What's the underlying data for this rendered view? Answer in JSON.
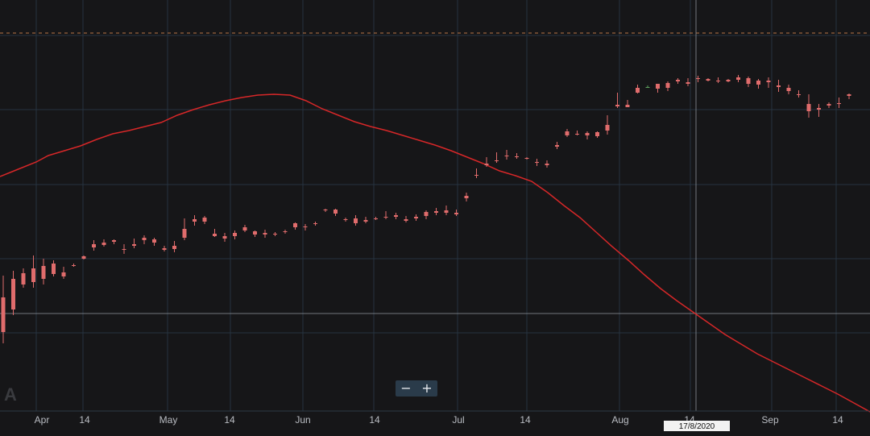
{
  "chart_data": {
    "type": "candlestick",
    "watermark": "A",
    "x_ticks": [
      "Apr",
      "14",
      "May",
      "14",
      "Jun",
      "14",
      "Jul",
      "14",
      "Aug",
      "14",
      "Sep",
      "14"
    ],
    "cursor_date": "17/8/2020",
    "zoom": {
      "minus": "−",
      "plus": "+"
    },
    "colors": {
      "up": "#5fa35e",
      "down": "#e06c6c",
      "ma": "#d62728",
      "grid": "#263340",
      "background": "#161618"
    },
    "moving_average": [
      [
        0,
        254
      ],
      [
        20,
        262
      ],
      [
        45,
        272
      ],
      [
        60,
        280
      ],
      [
        80,
        286
      ],
      [
        100,
        292
      ],
      [
        120,
        300
      ],
      [
        140,
        307
      ],
      [
        160,
        311
      ],
      [
        180,
        316
      ],
      [
        200,
        321
      ],
      [
        220,
        330
      ],
      [
        240,
        337
      ],
      [
        260,
        343
      ],
      [
        280,
        348
      ],
      [
        300,
        352
      ],
      [
        320,
        355
      ],
      [
        340,
        356
      ],
      [
        360,
        355
      ],
      [
        380,
        348
      ],
      [
        400,
        338
      ],
      [
        420,
        330
      ],
      [
        440,
        322
      ],
      [
        460,
        316
      ],
      [
        480,
        311
      ],
      [
        500,
        305
      ],
      [
        520,
        299
      ],
      [
        540,
        293
      ],
      [
        560,
        286
      ],
      [
        580,
        278
      ],
      [
        600,
        270
      ],
      [
        620,
        261
      ],
      [
        640,
        255
      ],
      [
        660,
        248
      ],
      [
        680,
        234
      ],
      [
        700,
        218
      ],
      [
        720,
        203
      ],
      [
        740,
        185
      ],
      [
        760,
        167
      ],
      [
        780,
        150
      ],
      [
        800,
        132
      ],
      [
        820,
        115
      ],
      [
        840,
        100
      ],
      [
        860,
        86
      ],
      [
        880,
        72
      ],
      [
        900,
        58
      ],
      [
        920,
        46
      ],
      [
        940,
        34
      ],
      [
        960,
        24
      ],
      [
        980,
        14
      ],
      [
        1000,
        4
      ],
      [
        1020,
        -6
      ],
      [
        1040,
        -16
      ],
      [
        1060,
        -27
      ],
      [
        1080,
        -38
      ]
    ],
    "candles": [
      [
        0,
        104,
        131,
        61,
        47
      ],
      [
        1,
        127,
        137,
        89,
        82
      ],
      [
        2,
        134,
        140,
        120,
        116
      ],
      [
        3,
        140,
        156,
        123,
        116
      ],
      [
        4,
        143,
        152,
        127,
        120
      ],
      [
        5,
        146,
        150,
        133,
        130
      ],
      [
        6,
        135,
        142,
        130,
        127
      ],
      [
        7,
        144,
        146,
        143,
        142
      ],
      [
        8,
        155,
        156,
        152,
        151
      ],
      [
        9,
        170,
        175,
        166,
        162
      ],
      [
        10,
        172,
        176,
        169,
        167
      ],
      [
        11,
        175,
        176,
        173,
        170
      ],
      [
        12,
        164,
        170,
        163,
        158
      ],
      [
        13,
        170,
        177,
        168,
        165
      ],
      [
        14,
        178,
        181,
        175,
        170
      ],
      [
        15,
        176,
        178,
        172,
        168
      ],
      [
        16,
        165,
        168,
        163,
        161
      ],
      [
        17,
        168,
        174,
        164,
        160
      ],
      [
        18,
        189,
        202,
        178,
        175
      ],
      [
        19,
        201,
        206,
        198,
        193
      ],
      [
        20,
        203,
        205,
        198,
        195
      ],
      [
        21,
        183,
        189,
        180,
        179
      ],
      [
        22,
        180,
        184,
        177,
        173
      ],
      [
        23,
        184,
        187,
        180,
        176
      ],
      [
        24,
        191,
        194,
        187,
        185
      ],
      [
        25,
        186,
        187,
        182,
        179
      ],
      [
        26,
        184,
        188,
        182,
        178
      ],
      [
        27,
        183,
        185,
        182,
        180
      ],
      [
        28,
        186,
        188,
        185,
        183
      ],
      [
        29,
        196,
        197,
        191,
        188
      ],
      [
        30,
        192,
        195,
        191,
        187
      ],
      [
        31,
        196,
        198,
        195,
        193
      ],
      [
        32,
        213,
        214,
        212,
        210
      ],
      [
        33,
        213,
        214,
        208,
        205
      ],
      [
        34,
        201,
        203,
        200,
        198
      ],
      [
        35,
        202,
        206,
        196,
        193
      ],
      [
        36,
        200,
        204,
        198,
        196
      ],
      [
        37,
        202,
        204,
        201,
        200
      ],
      [
        38,
        204,
        211,
        203,
        201
      ],
      [
        39,
        206,
        209,
        204,
        201
      ],
      [
        40,
        201,
        205,
        199,
        197
      ],
      [
        41,
        204,
        207,
        202,
        199
      ],
      [
        42,
        210,
        212,
        205,
        201
      ],
      [
        43,
        211,
        215,
        209,
        206
      ],
      [
        44,
        212,
        218,
        209,
        206
      ],
      [
        45,
        209,
        213,
        207,
        205
      ],
      [
        46,
        230,
        234,
        227,
        223
      ],
      [
        47,
        256,
        264,
        255,
        252
      ],
      [
        48,
        270,
        278,
        268,
        266
      ],
      [
        49,
        274,
        284,
        273,
        271
      ],
      [
        50,
        280,
        287,
        279,
        275
      ],
      [
        51,
        279,
        283,
        278,
        276
      ],
      [
        52,
        277,
        278,
        276,
        275
      ],
      [
        53,
        272,
        276,
        271,
        267
      ],
      [
        54,
        270,
        274,
        268,
        265
      ],
      [
        55,
        293,
        297,
        291,
        288
      ],
      [
        56,
        310,
        313,
        305,
        303
      ],
      [
        57,
        307,
        311,
        306,
        305
      ],
      [
        58,
        308,
        310,
        305,
        300
      ],
      [
        59,
        309,
        310,
        304,
        302
      ],
      [
        60,
        318,
        330,
        311,
        306
      ],
      [
        61,
        343,
        358,
        341,
        339
      ],
      [
        62,
        343,
        349,
        340,
        340
      ],
      [
        63,
        364,
        368,
        358,
        357
      ],
      [
        64,
        365,
        367,
        365,
        364
      ],
      [
        65,
        369,
        369,
        363,
        358
      ],
      [
        66,
        370,
        372,
        364,
        360
      ],
      [
        67,
        374,
        376,
        372,
        369
      ],
      [
        68,
        371,
        376,
        369,
        366
      ],
      [
        69,
        376,
        379,
        375,
        371
      ],
      [
        70,
        375,
        376,
        373,
        372
      ],
      [
        71,
        373,
        377,
        372,
        370
      ],
      [
        72,
        374,
        375,
        372,
        371
      ],
      [
        73,
        377,
        380,
        374,
        371
      ],
      [
        74,
        376,
        378,
        369,
        365
      ],
      [
        75,
        373,
        375,
        368,
        363
      ],
      [
        76,
        373,
        377,
        371,
        364
      ],
      [
        77,
        367,
        374,
        365,
        359
      ],
      [
        78,
        364,
        368,
        360,
        356
      ],
      [
        79,
        356,
        361,
        355,
        352
      ],
      [
        80,
        344,
        356,
        335,
        327
      ],
      [
        81,
        339,
        344,
        337,
        328
      ],
      [
        82,
        344,
        346,
        342,
        339
      ],
      [
        83,
        345,
        352,
        344,
        339
      ],
      [
        84,
        356,
        357,
        354,
        350
      ]
    ]
  }
}
